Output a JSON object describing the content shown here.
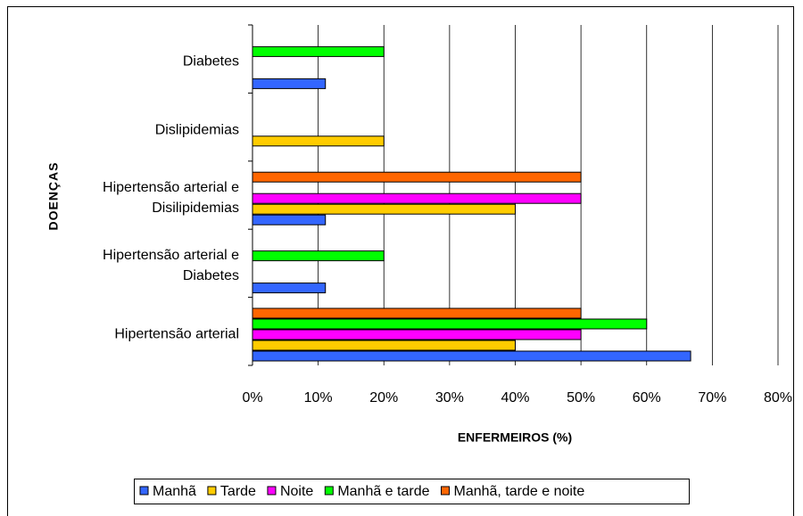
{
  "chart_data": {
    "type": "hbar",
    "xlabel": "ENFERMEIROS (%)",
    "ylabel": "DOENÇAS",
    "categories": [
      "Hipertensão arterial",
      "Hipertensão arterial e Diabetes",
      "Hipertensão arterial e Disilipidemias",
      "Dislipidemias",
      "Diabetes"
    ],
    "series": [
      {
        "name": "Manhã",
        "color": "#3366ff",
        "values": [
          66.7,
          11.1,
          11.1,
          0,
          11.1
        ]
      },
      {
        "name": "Tarde",
        "color": "#ffcc00",
        "values": [
          40,
          0,
          40,
          20,
          0
        ]
      },
      {
        "name": "Noite",
        "color": "#ff00ff",
        "values": [
          50,
          0,
          50,
          0,
          0
        ]
      },
      {
        "name": "Manhã e tarde",
        "color": "#00ff00",
        "values": [
          60,
          20,
          0,
          0,
          20
        ]
      },
      {
        "name": "Manhã, tarde e noite",
        "color": "#ff6600",
        "values": [
          50,
          0,
          50,
          0,
          0
        ]
      }
    ],
    "xlim": [
      0,
      80
    ],
    "xticks": [
      {
        "value": 0,
        "label": "0%"
      },
      {
        "value": 10,
        "label": "10%"
      },
      {
        "value": 20,
        "label": "20%"
      },
      {
        "value": 30,
        "label": "30%"
      },
      {
        "value": 40,
        "label": "40%"
      },
      {
        "value": 50,
        "label": "50%"
      },
      {
        "value": 60,
        "label": "60%"
      },
      {
        "value": 70,
        "label": "70%"
      },
      {
        "value": 80,
        "label": "80%"
      }
    ],
    "grid": true,
    "legend": "bottom"
  }
}
